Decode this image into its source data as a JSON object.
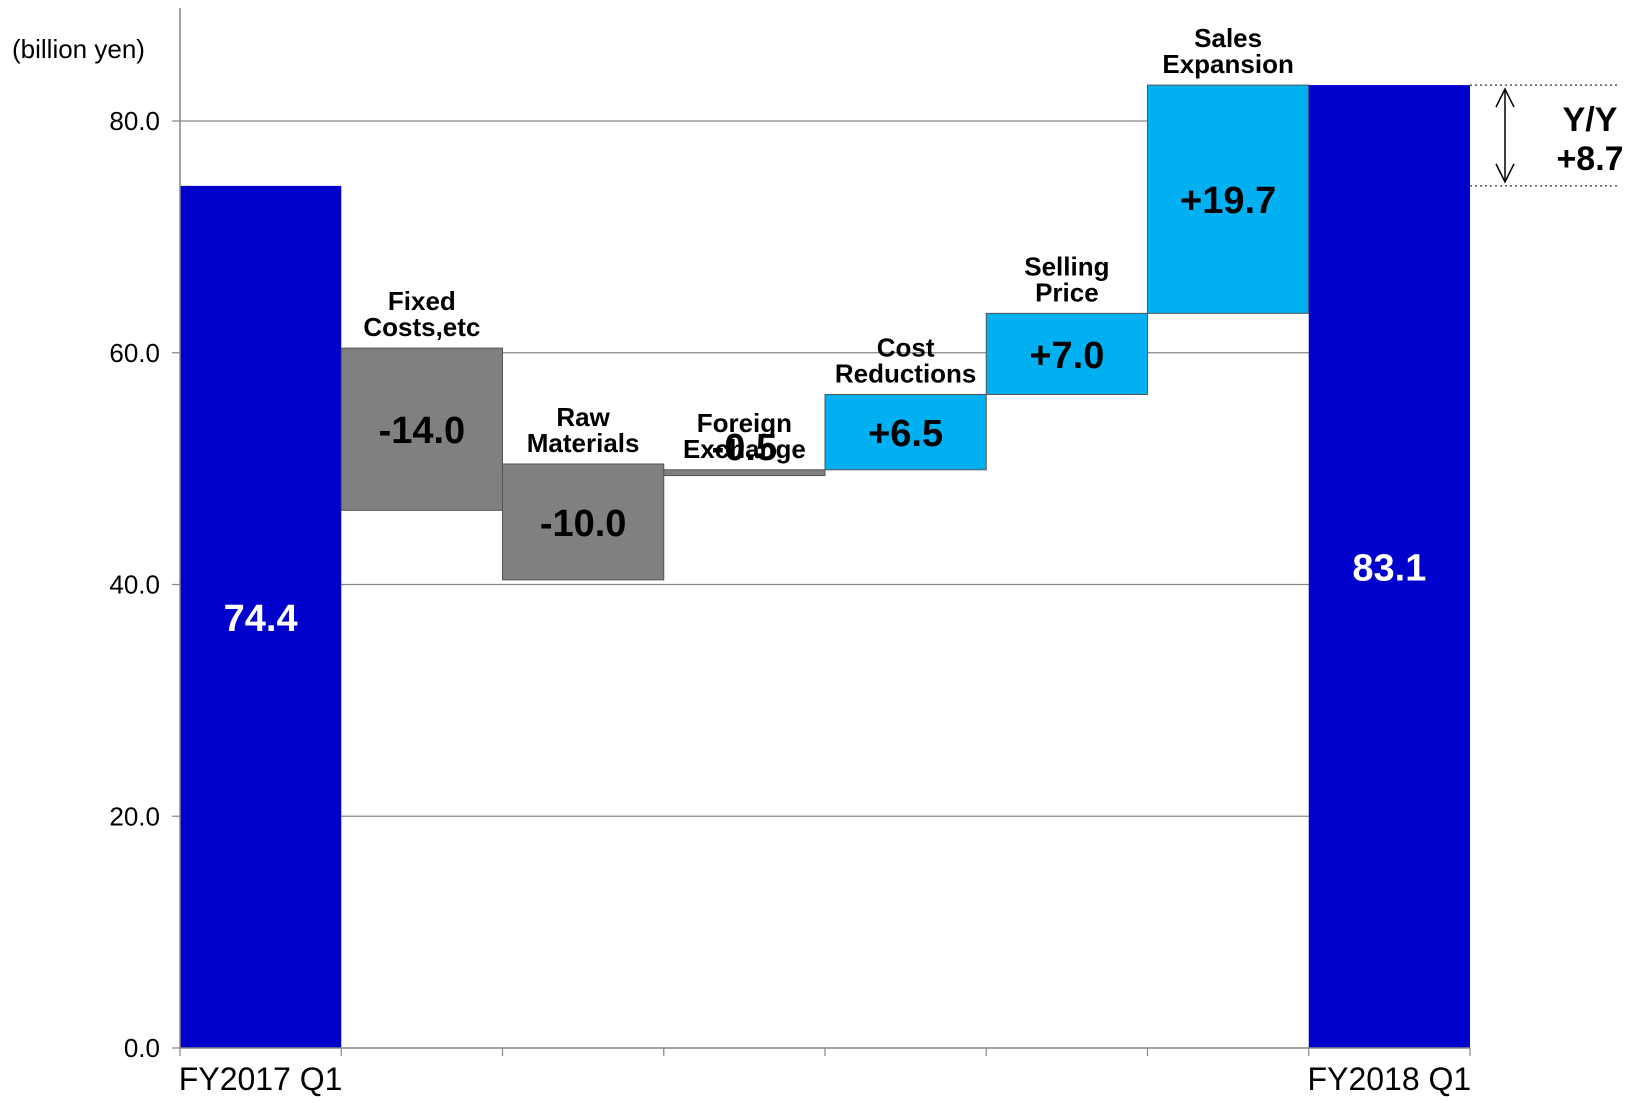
{
  "chart_data": {
    "type": "bar",
    "subtype": "waterfall",
    "y_unit_label": "(billion yen)",
    "ylim": [
      0,
      90
    ],
    "y_ticks": [
      "0.0",
      "20.0",
      "40.0",
      "60.0",
      "80.0"
    ],
    "y_tick_values": [
      0,
      20,
      40,
      60,
      80
    ],
    "grid": true,
    "steps": [
      {
        "label": [
          "",
          ""
        ],
        "base": 0,
        "value": 74.4,
        "value_label": "74.4",
        "kind": "total",
        "color": "#0000CC",
        "text_color": "#ffffff"
      },
      {
        "label": [
          "Fixed",
          "Costs,etc"
        ],
        "base": 60.4,
        "value": -14.0,
        "value_label": "-14.0",
        "kind": "decrease",
        "color": "#808080",
        "text_color": "#000000"
      },
      {
        "label": [
          "Raw",
          "Materials"
        ],
        "base": 50.4,
        "value": -10.0,
        "value_label": "-10.0",
        "kind": "decrease",
        "color": "#808080",
        "text_color": "#000000"
      },
      {
        "label": [
          "Foreign",
          "Exchange"
        ],
        "base": 49.9,
        "value": -0.5,
        "value_label": "-0.5",
        "kind": "decrease",
        "color": "#808080",
        "text_color": "#000000"
      },
      {
        "label": [
          "Cost",
          "Reductions"
        ],
        "base": 49.9,
        "value": 6.5,
        "value_label": "+6.5",
        "kind": "increase",
        "color": "#00B0F0",
        "text_color": "#000000"
      },
      {
        "label": [
          "Selling",
          "Price"
        ],
        "base": 56.4,
        "value": 7.0,
        "value_label": "+7.0",
        "kind": "increase",
        "color": "#00B0F0",
        "text_color": "#000000"
      },
      {
        "label": [
          "Sales",
          "Expansion"
        ],
        "base": 63.4,
        "value": 19.7,
        "value_label": "+19.7",
        "kind": "increase",
        "color": "#00B0F0",
        "text_color": "#000000"
      },
      {
        "label": [
          "",
          ""
        ],
        "base": 0,
        "value": 83.1,
        "value_label": "83.1",
        "kind": "total",
        "color": "#0000CC",
        "text_color": "#ffffff"
      }
    ],
    "x_labels": [
      "FY2017 Q1",
      "",
      "",
      "",
      "",
      "",
      "",
      "FY2018 Q1"
    ],
    "yoy": {
      "line1": "Y/Y",
      "line2": "+8.7",
      "from": 74.4,
      "to": 83.1
    }
  }
}
